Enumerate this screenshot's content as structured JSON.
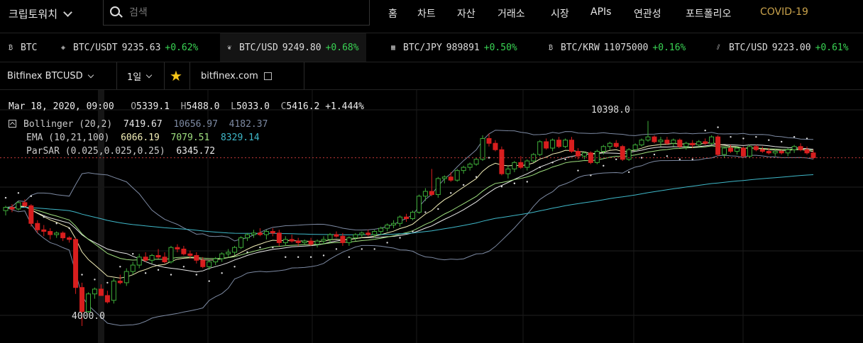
{
  "app": {
    "title": "크립토워치"
  },
  "search": {
    "placeholder": "검색"
  },
  "nav": {
    "items": [
      "홈",
      "차트",
      "자산",
      "거래소",
      "시장",
      "APIs",
      "연관성",
      "포트폴리오",
      "COVID-19"
    ]
  },
  "tickers": [
    {
      "label": "BTC",
      "price": "",
      "change": ""
    },
    {
      "label": "BTC/USDT",
      "price": "9235.63",
      "change": "+0.62%"
    },
    {
      "label": "BTC/USD",
      "price": "9249.80",
      "change": "+0.68%"
    },
    {
      "label": "BTC/JPY",
      "price": "989891",
      "change": "+0.50%"
    },
    {
      "label": "BTC/KRW",
      "price": "11075000",
      "change": "+0.16%"
    },
    {
      "label": "BTC/USD",
      "price": "9223.00",
      "change": "+0.61%"
    }
  ],
  "toolbar": {
    "market": "Bitfinex BTCUSD",
    "interval": "1일",
    "exchange_link": "bitfinex.com"
  },
  "ohlc": {
    "date": "Mar 18, 2020, 09:00",
    "open_key": "O",
    "open": "5339.1",
    "high_key": "H",
    "high": "5488.0",
    "low_key": "L",
    "low": "5033.0",
    "close_key": "C",
    "close": "5416.2",
    "change": "+1.444%"
  },
  "indicators": {
    "bollinger": {
      "label": "Bollinger (20,2)",
      "v1": "7419.67",
      "v2": "10656.97",
      "v3": "4182.37"
    },
    "ema": {
      "label": "EMA (10,21,100)",
      "v1": "6066.19",
      "v2": "7079.51",
      "v3": "8329.14"
    },
    "parsar": {
      "label": "ParSAR (0.025,0.025,0.25)",
      "v1": "6345.72"
    }
  },
  "price_labels": {
    "high": "10398.0",
    "low": "4000.0"
  },
  "colors": {
    "up": "#3fae3a",
    "down": "#d81e1e",
    "positive_change": "#39d353",
    "covid": "#c9a24b",
    "star": "#f5c518",
    "bollinger": "#7d8aa3",
    "ema_fast": "#f4f0b8",
    "ema_mid": "#9fe07f",
    "ema_slow": "#3fb8c9"
  },
  "chart_data": {
    "type": "candlestick",
    "yrange": [
      3800,
      10700
    ],
    "candles": [
      [
        7600,
        7750,
        7450,
        7700
      ],
      [
        7700,
        7800,
        7550,
        7650
      ],
      [
        7650,
        7900,
        7600,
        7850
      ],
      [
        7850,
        7950,
        7700,
        7750
      ],
      [
        7750,
        7800,
        7100,
        7200
      ],
      [
        7200,
        7300,
        6900,
        7000
      ],
      [
        7000,
        7150,
        6800,
        6950
      ],
      [
        6950,
        7050,
        6700,
        6850
      ],
      [
        6850,
        6950,
        6750,
        6900
      ],
      [
        6900,
        6950,
        6650,
        6750
      ],
      [
        6750,
        6800,
        6600,
        6700
      ],
      [
        6700,
        6750,
        5000,
        5200
      ],
      [
        5200,
        5350,
        4000,
        4450
      ],
      [
        4450,
        5050,
        4400,
        5000
      ],
      [
        5000,
        5200,
        4850,
        5150
      ],
      [
        5150,
        5300,
        4950,
        4950
      ],
      [
        4950,
        5100,
        4700,
        4750
      ],
      [
        4800,
        5488,
        4700,
        5400
      ],
      [
        5400,
        5600,
        5300,
        5350
      ],
      [
        5350,
        5800,
        5250,
        5700
      ],
      [
        5700,
        6000,
        5600,
        5900
      ],
      [
        5900,
        6250,
        5800,
        6150
      ],
      [
        6150,
        6300,
        6000,
        6050
      ],
      [
        6050,
        6250,
        5950,
        6200
      ],
      [
        6200,
        6400,
        6100,
        6150
      ],
      [
        6150,
        6300,
        5950,
        6000
      ],
      [
        6000,
        6500,
        5950,
        6450
      ],
      [
        6450,
        6550,
        6300,
        6400
      ],
      [
        6400,
        6500,
        6200,
        6250
      ],
      [
        6250,
        6350,
        6100,
        6200
      ],
      [
        6200,
        6300,
        5950,
        6050
      ],
      [
        6050,
        6150,
        5800,
        5850
      ],
      [
        5850,
        6050,
        5750,
        6000
      ],
      [
        6000,
        6150,
        5900,
        6100
      ],
      [
        6100,
        6300,
        6000,
        6250
      ],
      [
        6250,
        6400,
        6150,
        6300
      ],
      [
        6300,
        6500,
        6200,
        6450
      ],
      [
        6450,
        6800,
        6400,
        6750
      ],
      [
        6750,
        6900,
        6650,
        6850
      ],
      [
        6850,
        7000,
        6750,
        6900
      ],
      [
        6900,
        7050,
        6800,
        6850
      ],
      [
        6850,
        7000,
        6700,
        6950
      ],
      [
        6950,
        7050,
        6800,
        6900
      ],
      [
        6900,
        7000,
        6500,
        6600
      ],
      [
        6600,
        6800,
        6500,
        6700
      ],
      [
        6700,
        6850,
        6600,
        6650
      ],
      [
        6650,
        6750,
        6500,
        6600
      ],
      [
        6600,
        6700,
        6550,
        6650
      ],
      [
        6650,
        6750,
        6500,
        6550
      ],
      [
        6550,
        6700,
        6450,
        6650
      ],
      [
        6650,
        6800,
        6550,
        6700
      ],
      [
        6700,
        6900,
        6600,
        6850
      ],
      [
        6850,
        6950,
        6750,
        6800
      ],
      [
        6800,
        6900,
        6500,
        6600
      ],
      [
        6600,
        6800,
        6500,
        6750
      ],
      [
        6750,
        6900,
        6650,
        6850
      ],
      [
        6850,
        6950,
        6750,
        6900
      ],
      [
        6900,
        7000,
        6800,
        6850
      ],
      [
        6850,
        7000,
        6750,
        6950
      ],
      [
        6950,
        7100,
        6850,
        7050
      ],
      [
        7050,
        7200,
        6950,
        7150
      ],
      [
        7150,
        7300,
        7050,
        7200
      ],
      [
        7200,
        7450,
        7100,
        7400
      ],
      [
        7400,
        7500,
        7250,
        7350
      ],
      [
        7350,
        7600,
        7300,
        7550
      ],
      [
        7550,
        8100,
        7500,
        8050
      ],
      [
        8050,
        8300,
        7900,
        8200
      ],
      [
        8200,
        8900,
        8050,
        8100
      ],
      [
        8100,
        8650,
        8000,
        8600
      ],
      [
        8600,
        8700,
        8450,
        8650
      ],
      [
        8650,
        8800,
        8500,
        8550
      ],
      [
        8550,
        8900,
        8500,
        8850
      ],
      [
        8850,
        9000,
        8750,
        8950
      ],
      [
        8950,
        9100,
        8850,
        9050
      ],
      [
        9050,
        9250,
        9000,
        9200
      ],
      [
        9200,
        9950,
        9150,
        9850
      ],
      [
        9850,
        10000,
        9600,
        9700
      ],
      [
        9700,
        9800,
        9450,
        9500
      ],
      [
        9500,
        9600,
        8700,
        8750
      ],
      [
        8750,
        9000,
        8600,
        8900
      ],
      [
        8900,
        9150,
        8800,
        9100
      ],
      [
        9100,
        9300,
        8900,
        8950
      ],
      [
        8950,
        9200,
        8850,
        9150
      ],
      [
        9150,
        9400,
        9100,
        9350
      ],
      [
        9350,
        9800,
        9300,
        9750
      ],
      [
        9750,
        9850,
        9500,
        9550
      ],
      [
        9550,
        9850,
        9450,
        9800
      ],
      [
        9800,
        9900,
        9550,
        9600
      ],
      [
        9600,
        9850,
        9550,
        9800
      ],
      [
        9800,
        9900,
        9400,
        9450
      ],
      [
        9450,
        9550,
        9200,
        9300
      ],
      [
        9300,
        9450,
        9200,
        9400
      ],
      [
        9400,
        9450,
        9050,
        9100
      ],
      [
        9100,
        9500,
        9050,
        9450
      ],
      [
        9450,
        9650,
        9350,
        9600
      ],
      [
        9600,
        9750,
        9500,
        9700
      ],
      [
        9700,
        9800,
        9550,
        9600
      ],
      [
        9600,
        9650,
        9150,
        9200
      ],
      [
        9200,
        9550,
        9150,
        9500
      ],
      [
        9500,
        9700,
        9450,
        9650
      ],
      [
        9650,
        9850,
        9600,
        9800
      ],
      [
        9800,
        10398,
        9750,
        9900
      ],
      [
        9900,
        9950,
        9700,
        9750
      ],
      [
        9750,
        9900,
        9600,
        9800
      ],
      [
        9800,
        9900,
        9650,
        9700
      ],
      [
        9700,
        9850,
        9600,
        9800
      ],
      [
        9800,
        9850,
        9550,
        9600
      ],
      [
        9600,
        9750,
        9500,
        9700
      ],
      [
        9700,
        9800,
        9550,
        9650
      ],
      [
        9650,
        9800,
        9600,
        9750
      ],
      [
        9750,
        9850,
        9650,
        9700
      ],
      [
        9700,
        9950,
        9650,
        9900
      ],
      [
        9900,
        9950,
        9300,
        9350
      ],
      [
        9350,
        9600,
        9250,
        9550
      ],
      [
        9550,
        9650,
        9400,
        9450
      ],
      [
        9450,
        9600,
        9350,
        9550
      ],
      [
        9550,
        9600,
        9250,
        9300
      ],
      [
        9300,
        9650,
        9250,
        9600
      ],
      [
        9600,
        9650,
        9450,
        9500
      ],
      [
        9500,
        9600,
        9400,
        9450
      ],
      [
        9450,
        9550,
        9350,
        9400
      ],
      [
        9400,
        9500,
        9300,
        9450
      ],
      [
        9450,
        9500,
        9350,
        9400
      ],
      [
        9400,
        9550,
        9300,
        9500
      ],
      [
        9500,
        9650,
        9400,
        9600
      ],
      [
        9600,
        9700,
        9450,
        9500
      ],
      [
        9500,
        9600,
        9350,
        9400
      ],
      [
        9400,
        9500,
        9200,
        9250
      ]
    ]
  }
}
